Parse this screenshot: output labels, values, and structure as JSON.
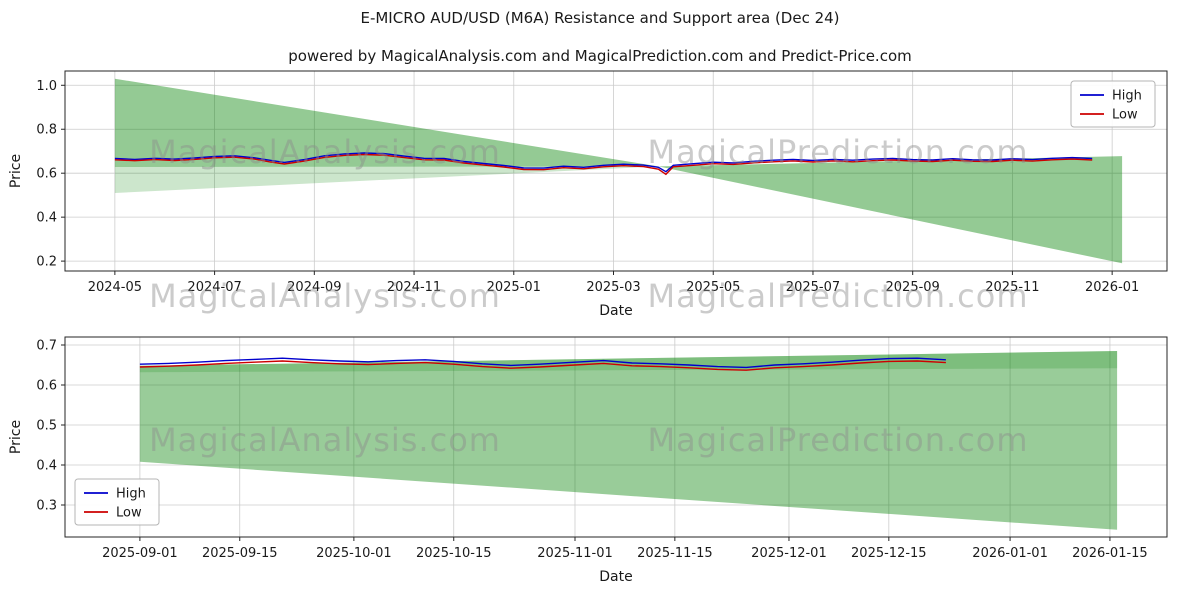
{
  "page": {
    "title": "E-MICRO AUD/USD (M6A) Resistance and Support area (Dec 24)",
    "subtitle": "powered by MagicalAnalysis.com and MagicalPrediction.com and Predict-Price.com"
  },
  "watermarks": [
    "MagicalAnalysis.com",
    "MagicalPrediction.com"
  ],
  "colors": {
    "high_line": "#0000cd",
    "low_line": "#cd0000",
    "band_green": "#008000",
    "grid": "#cccccc",
    "axis": "#262626",
    "watermark": "#8c8c8c"
  },
  "chart_data": [
    {
      "type": "line",
      "title": "",
      "xlabel": "Date",
      "ylabel": "Price",
      "xlim": [
        -1,
        21.1
      ],
      "ylim": [
        0.155,
        1.065
      ],
      "grid": true,
      "y_ticks": [
        0.2,
        0.4,
        0.6,
        0.8,
        1.0
      ],
      "x_ticks": [
        {
          "v": 0,
          "label": "2024-05"
        },
        {
          "v": 2,
          "label": "2024-07"
        },
        {
          "v": 4,
          "label": "2024-09"
        },
        {
          "v": 6,
          "label": "2024-11"
        },
        {
          "v": 8,
          "label": "2025-01"
        },
        {
          "v": 10,
          "label": "2025-03"
        },
        {
          "v": 12,
          "label": "2025-05"
        },
        {
          "v": 14,
          "label": "2025-07"
        },
        {
          "v": 16,
          "label": "2025-09"
        },
        {
          "v": 18,
          "label": "2025-11"
        },
        {
          "v": 20,
          "label": "2026-01"
        }
      ],
      "legend": {
        "position": "top-right",
        "entries": [
          {
            "label": "High",
            "color": "#0000cd"
          },
          {
            "label": "Low",
            "color": "#cd0000"
          }
        ]
      },
      "band_color": "#008000",
      "bands": [
        {
          "name": "resistance-wedge-upper-left",
          "opacity": 0.42,
          "points": [
            [
              0,
              1.03
            ],
            [
              0,
              0.628
            ],
            [
              10.9,
              0.631
            ]
          ]
        },
        {
          "name": "support-strip-lower-left",
          "opacity": 0.2,
          "points": [
            [
              0,
              0.628
            ],
            [
              0,
              0.51
            ],
            [
              10.9,
              0.631
            ]
          ]
        },
        {
          "name": "support-wedge-right",
          "opacity": 0.42,
          "points": [
            [
              10.9,
              0.631
            ],
            [
              20.2,
              0.678
            ],
            [
              20.2,
              0.19
            ]
          ]
        }
      ],
      "x": [
        0,
        0.4,
        0.8,
        1.2,
        1.6,
        2.0,
        2.4,
        2.8,
        3.1,
        3.4,
        3.8,
        4.2,
        4.6,
        5.0,
        5.4,
        5.8,
        6.2,
        6.6,
        7.0,
        7.4,
        7.8,
        8.2,
        8.6,
        9.0,
        9.4,
        9.8,
        10.2,
        10.6,
        10.9,
        11.05,
        11.2,
        11.6,
        12.0,
        12.4,
        12.8,
        13.2,
        13.6,
        14.0,
        14.4,
        14.8,
        15.2,
        15.6,
        16.0,
        16.4,
        16.8,
        17.2,
        17.6,
        18.0,
        18.4,
        18.8,
        19.2,
        19.6
      ],
      "series": [
        {
          "name": "High",
          "color": "#0000cd",
          "y": [
            0.667,
            0.663,
            0.668,
            0.664,
            0.669,
            0.676,
            0.679,
            0.67,
            0.659,
            0.649,
            0.662,
            0.679,
            0.688,
            0.692,
            0.689,
            0.678,
            0.668,
            0.667,
            0.653,
            0.644,
            0.635,
            0.624,
            0.623,
            0.632,
            0.627,
            0.636,
            0.641,
            0.637,
            0.627,
            0.607,
            0.636,
            0.643,
            0.65,
            0.647,
            0.654,
            0.659,
            0.663,
            0.658,
            0.663,
            0.659,
            0.664,
            0.667,
            0.662,
            0.66,
            0.666,
            0.661,
            0.66,
            0.666,
            0.662,
            0.668,
            0.671,
            0.667
          ]
        },
        {
          "name": "Low",
          "color": "#cd0000",
          "y": [
            0.661,
            0.657,
            0.662,
            0.658,
            0.663,
            0.67,
            0.673,
            0.664,
            0.652,
            0.642,
            0.655,
            0.672,
            0.681,
            0.685,
            0.682,
            0.671,
            0.661,
            0.66,
            0.646,
            0.637,
            0.628,
            0.617,
            0.616,
            0.625,
            0.62,
            0.629,
            0.634,
            0.63,
            0.618,
            0.595,
            0.629,
            0.636,
            0.643,
            0.64,
            0.647,
            0.652,
            0.656,
            0.651,
            0.656,
            0.652,
            0.657,
            0.66,
            0.655,
            0.653,
            0.659,
            0.654,
            0.653,
            0.659,
            0.655,
            0.661,
            0.664,
            0.66
          ]
        }
      ]
    },
    {
      "type": "line",
      "title": "",
      "xlabel": "Date",
      "ylabel": "Price",
      "xlim": [
        -10.5,
        144
      ],
      "ylim": [
        0.22,
        0.72
      ],
      "grid": true,
      "y_ticks": [
        0.3,
        0.4,
        0.5,
        0.6,
        0.7
      ],
      "x_ticks": [
        {
          "v": 0,
          "label": "2025-09-01"
        },
        {
          "v": 14,
          "label": "2025-09-15"
        },
        {
          "v": 30,
          "label": "2025-10-01"
        },
        {
          "v": 44,
          "label": "2025-10-15"
        },
        {
          "v": 61,
          "label": "2025-11-01"
        },
        {
          "v": 75,
          "label": "2025-11-15"
        },
        {
          "v": 91,
          "label": "2025-12-01"
        },
        {
          "v": 105,
          "label": "2025-12-15"
        },
        {
          "v": 122,
          "label": "2026-01-01"
        },
        {
          "v": 136,
          "label": "2026-01-15"
        }
      ],
      "legend": {
        "position": "bottom-left",
        "entries": [
          {
            "label": "High",
            "color": "#0000cd"
          },
          {
            "label": "Low",
            "color": "#cd0000"
          }
        ]
      },
      "band_color": "#008000",
      "bands": [
        {
          "name": "support-area",
          "opacity": 0.4,
          "points": [
            [
              0,
              0.648
            ],
            [
              137,
              0.685
            ],
            [
              137,
              0.238
            ],
            [
              0,
              0.408
            ]
          ]
        },
        {
          "name": "resistance-strip",
          "opacity": 0.18,
          "points": [
            [
              0,
              0.648
            ],
            [
              137,
              0.685
            ],
            [
              137,
              0.642
            ],
            [
              0,
              0.632
            ]
          ]
        }
      ],
      "x": [
        0,
        4,
        8,
        12,
        16,
        20,
        24,
        28,
        32,
        36,
        40,
        44,
        48,
        52,
        56,
        61,
        65,
        69,
        73,
        77,
        81,
        85,
        89,
        93,
        97,
        101,
        105,
        109,
        113
      ],
      "series": [
        {
          "name": "High",
          "color": "#0000cd",
          "y": [
            0.652,
            0.654,
            0.657,
            0.661,
            0.664,
            0.667,
            0.663,
            0.66,
            0.658,
            0.661,
            0.663,
            0.659,
            0.653,
            0.649,
            0.652,
            0.657,
            0.661,
            0.655,
            0.653,
            0.65,
            0.646,
            0.644,
            0.65,
            0.653,
            0.657,
            0.662,
            0.666,
            0.667,
            0.663
          ]
        },
        {
          "name": "Low",
          "color": "#cd0000",
          "y": [
            0.645,
            0.647,
            0.65,
            0.654,
            0.657,
            0.66,
            0.656,
            0.653,
            0.651,
            0.654,
            0.656,
            0.652,
            0.646,
            0.642,
            0.645,
            0.65,
            0.654,
            0.648,
            0.646,
            0.643,
            0.639,
            0.637,
            0.643,
            0.646,
            0.65,
            0.655,
            0.659,
            0.66,
            0.656
          ]
        }
      ]
    }
  ]
}
